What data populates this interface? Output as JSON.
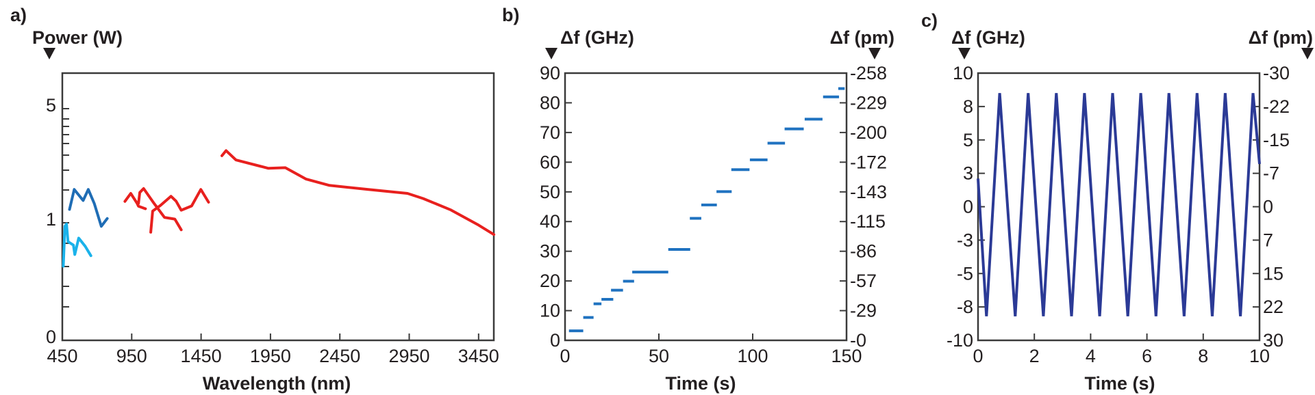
{
  "chart_data": [
    {
      "panel_label": "a)",
      "type": "line",
      "ylabel": "Power (W)",
      "xlabel": "Wavelength (nm)",
      "xlim": [
        450,
        3560
      ],
      "x_ticks": [
        450,
        950,
        1450,
        1950,
        2450,
        2950,
        3450
      ],
      "y_ticks": [
        0,
        1,
        5
      ],
      "y_scale": "nonlinear (compressed above 1 W)",
      "grid": false,
      "colors": {
        "red": "#e8201e",
        "dark_blue": "#1f6db5",
        "light_blue": "#1ab2ea"
      },
      "series": [
        {
          "color": "#1ab2ea",
          "points": [
            [
              457,
              0.63
            ],
            [
              469,
              0.97
            ],
            [
              480,
              0.99
            ],
            [
              491,
              0.84
            ],
            [
              530,
              0.81
            ],
            [
              540,
              0.73
            ],
            [
              568,
              0.87
            ],
            [
              615,
              0.8
            ],
            [
              656,
              0.72
            ]
          ]
        },
        {
          "color": "#1f6db5",
          "points": [
            [
              502,
              1.47
            ],
            [
              536,
              2.17
            ],
            [
              600,
              1.78
            ],
            [
              637,
              2.17
            ],
            [
              680,
              1.68
            ],
            [
              731,
              0.97
            ],
            [
              774,
              1.15
            ]
          ]
        },
        {
          "color": "#e8201e",
          "points": [
            [
              901,
              1.75
            ],
            [
              943,
              2.03
            ],
            [
              989,
              1.68
            ],
            [
              999,
              1.58
            ],
            [
              1049,
              1.49
            ]
          ]
        },
        {
          "color": "#e8201e",
          "points": [
            [
              999,
              1.68
            ],
            [
              1008,
              2.06
            ],
            [
              1036,
              2.2
            ],
            [
              1111,
              1.68
            ],
            [
              1186,
              1.19
            ],
            [
              1261,
              1.13
            ],
            [
              1307,
              0.94
            ]
          ]
        },
        {
          "color": "#e8201e",
          "points": [
            [
              1087,
              0.92
            ],
            [
              1101,
              1.41
            ],
            [
              1158,
              1.61
            ],
            [
              1233,
              1.93
            ],
            [
              1270,
              1.76
            ],
            [
              1307,
              1.44
            ],
            [
              1382,
              1.59
            ],
            [
              1448,
              2.17
            ],
            [
              1504,
              1.72
            ]
          ]
        },
        {
          "color": "#e8201e",
          "points": [
            [
              1600,
              3.35
            ],
            [
              1630,
              3.53
            ],
            [
              1701,
              3.2
            ],
            [
              1935,
              2.91
            ],
            [
              2057,
              2.93
            ],
            [
              2207,
              2.53
            ],
            [
              2375,
              2.31
            ],
            [
              2656,
              2.17
            ],
            [
              2937,
              2.03
            ],
            [
              3050,
              1.85
            ],
            [
              3250,
              1.45
            ],
            [
              3450,
              0.98
            ],
            [
              3560,
              0.9
            ]
          ]
        }
      ]
    },
    {
      "panel_label": "b)",
      "type": "line",
      "ylabel": "Δf (GHz)",
      "ylabel_right": "Δf (pm)",
      "xlabel": "Time (s)",
      "xlim": [
        0,
        150
      ],
      "ylim": [
        0,
        90
      ],
      "x_ticks": [
        0,
        50,
        100,
        150
      ],
      "y_ticks": [
        0,
        10,
        20,
        30,
        40,
        50,
        60,
        70,
        80,
        90
      ],
      "y_ticks_right": [
        "-0",
        "-29",
        "-57",
        "-86",
        "-115",
        "-143",
        "-172",
        "-200",
        "-229",
        "-258"
      ],
      "grid": false,
      "color": "#1f72c0",
      "steps": [
        {
          "t_start": 2.1,
          "t_end": 9.7,
          "df": 3.2
        },
        {
          "t_start": 9.7,
          "t_end": 15.2,
          "df": 7.7
        },
        {
          "t_start": 15.2,
          "t_end": 19.4,
          "df": 12.3
        },
        {
          "t_start": 19.4,
          "t_end": 25.7,
          "df": 13.8
        },
        {
          "t_start": 24.5,
          "t_end": 30.9,
          "df": 16.9
        },
        {
          "t_start": 30.9,
          "t_end": 36.8,
          "df": 19.9
        },
        {
          "t_start": 35.8,
          "t_end": 55.0,
          "df": 23.0
        },
        {
          "t_start": 55.0,
          "t_end": 66.7,
          "df": 30.6
        },
        {
          "t_start": 66.5,
          "t_end": 72.6,
          "df": 41.1
        },
        {
          "t_start": 72.6,
          "t_end": 80.9,
          "df": 45.6
        },
        {
          "t_start": 80.7,
          "t_end": 88.8,
          "df": 50.1
        },
        {
          "t_start": 88.6,
          "t_end": 98.3,
          "df": 57.5
        },
        {
          "t_start": 98.5,
          "t_end": 107.9,
          "df": 60.8
        },
        {
          "t_start": 107.9,
          "t_end": 117.2,
          "df": 66.4
        },
        {
          "t_start": 117.0,
          "t_end": 127.2,
          "df": 71.2
        },
        {
          "t_start": 127.7,
          "t_end": 137.2,
          "df": 74.5
        },
        {
          "t_start": 137.5,
          "t_end": 146.0,
          "df": 82.0
        },
        {
          "t_start": 145.6,
          "t_end": 149.0,
          "df": 84.8
        }
      ]
    },
    {
      "panel_label": "c)",
      "type": "line",
      "ylabel": "Δf (GHz)",
      "ylabel_right": "Δf (pm)",
      "xlabel": "Time (s)",
      "xlim": [
        0,
        10
      ],
      "ylim": [
        -10,
        10
      ],
      "x_ticks": [
        0,
        2,
        4,
        6,
        8,
        10
      ],
      "y_tick_values": [
        -10,
        -7.5,
        -5,
        -2.5,
        0,
        2.5,
        5,
        7.5,
        10
      ],
      "y_ticks": [
        "-10",
        "-8",
        "-5",
        "-3",
        "0",
        "3",
        "5",
        "8",
        "10"
      ],
      "y_ticks_right": [
        "30",
        "22",
        "15",
        "7",
        "0",
        "-7",
        "-15",
        "-22",
        "-30"
      ],
      "grid": false,
      "color": "#2b3a96",
      "points": [
        [
          0,
          2.1
        ],
        [
          0.3,
          -8.2
        ],
        [
          0.77,
          8.5
        ],
        [
          1.32,
          -8.2
        ],
        [
          1.78,
          8.5
        ],
        [
          2.32,
          -8.2
        ],
        [
          2.78,
          8.5
        ],
        [
          3.32,
          -8.2
        ],
        [
          3.78,
          8.5
        ],
        [
          4.32,
          -8.2
        ],
        [
          4.78,
          8.5
        ],
        [
          5.32,
          -8.2
        ],
        [
          5.78,
          8.5
        ],
        [
          6.32,
          -8.2
        ],
        [
          6.78,
          8.5
        ],
        [
          7.32,
          -8.2
        ],
        [
          7.78,
          8.5
        ],
        [
          8.32,
          -8.2
        ],
        [
          8.78,
          8.5
        ],
        [
          9.32,
          -8.2
        ],
        [
          9.77,
          8.5
        ],
        [
          10,
          3.2
        ]
      ]
    }
  ]
}
